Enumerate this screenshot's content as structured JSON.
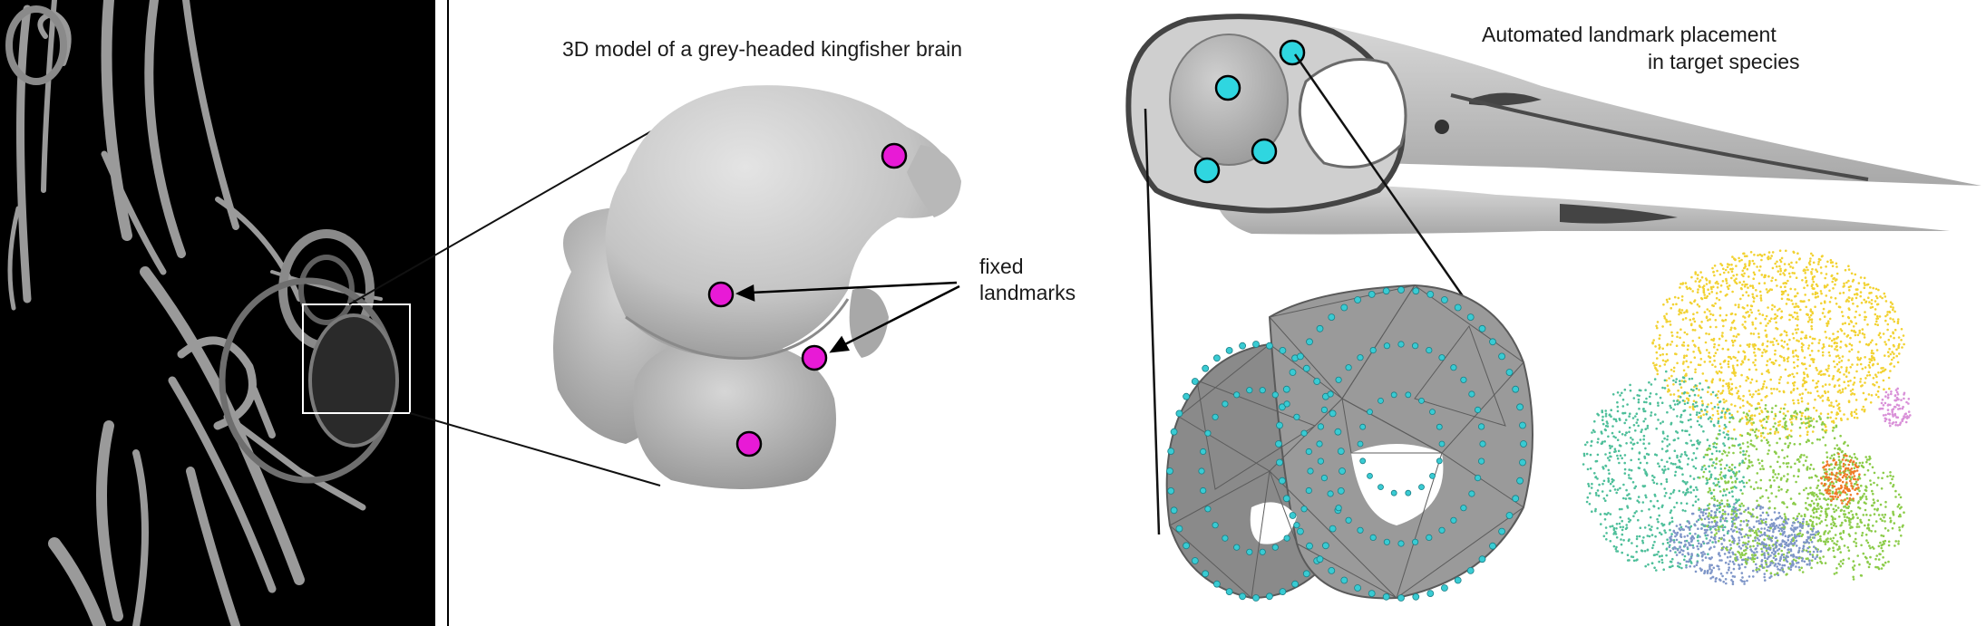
{
  "labels": {
    "brain_model_title": "3D model of a grey-headed kingfisher brain",
    "fixed_landmarks_line1": "fixed",
    "fixed_landmarks_line2": "landmarks",
    "automated_line1": "Automated landmark  placement",
    "automated_line2": "in target species"
  },
  "panels": {
    "ct_scan": "x-ray ct scan of bird skeleton",
    "brain_model": "grey 3d brain surface model",
    "skull_model": "grey 3d bird skull model",
    "mesh_model": "brain wireframe mesh with semi-landmarks",
    "point_cloud": "coloured landmark point cloud"
  },
  "colors": {
    "fixed_landmark": "#e81ad6",
    "skull_landmark": "#2fd6e0",
    "mesh_point": "#39cbd3",
    "ct_background": "#000000",
    "model_grey": "#c8c8c8",
    "cloud_yellow": "#f2d232",
    "cloud_green": "#8ccc4a",
    "cloud_teal": "#4ebf9a",
    "cloud_blue": "#7f96c8",
    "cloud_orange": "#f07a28",
    "cloud_pink": "#d990d8"
  }
}
